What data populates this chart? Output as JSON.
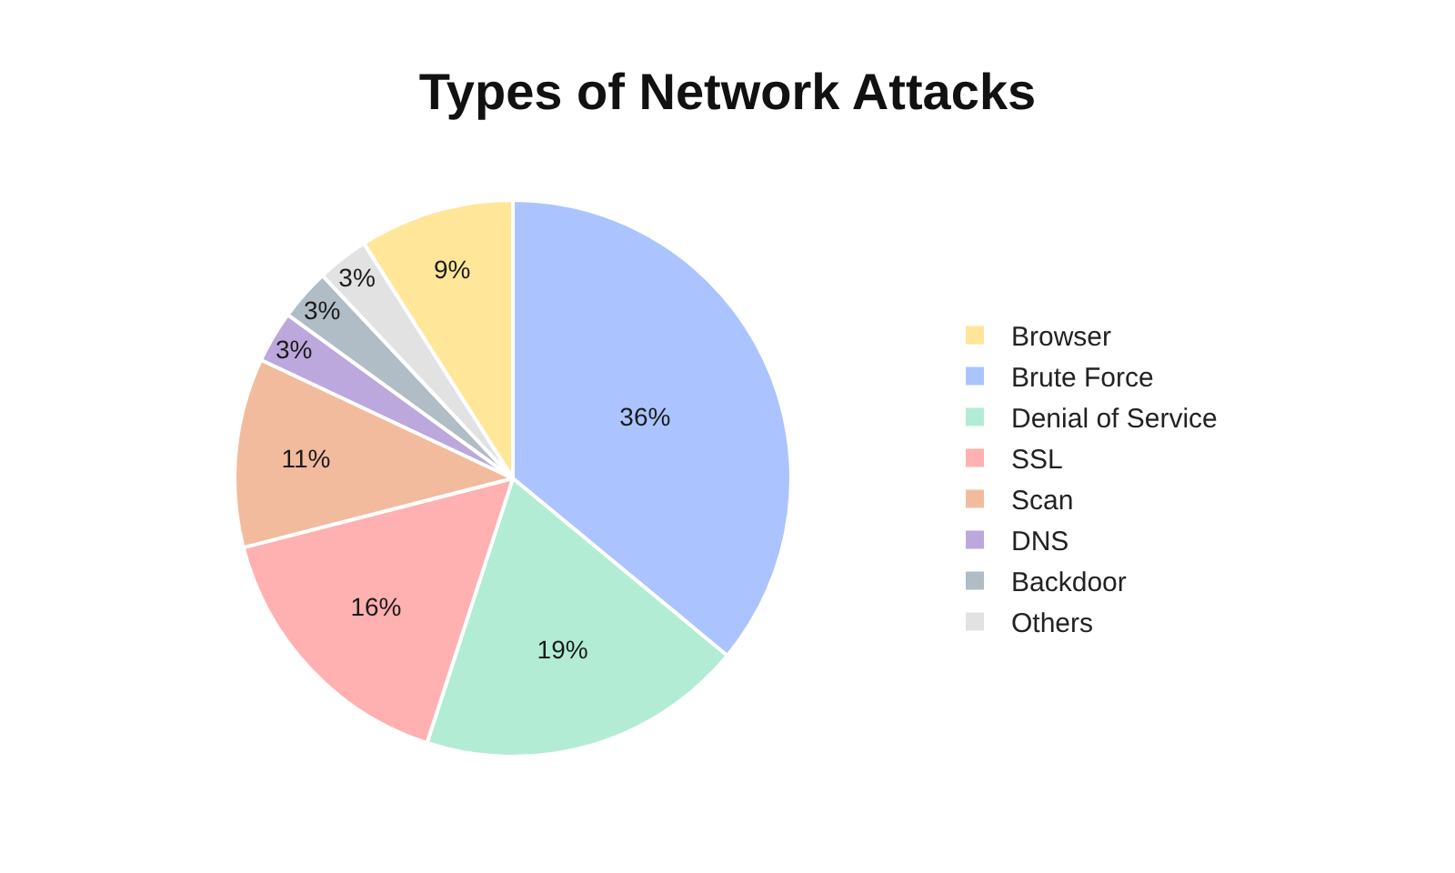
{
  "chart_data": {
    "type": "pie",
    "title": "Types of Network Attacks",
    "categories": [
      "Browser",
      "Brute Force",
      "Denial of Service",
      "SSL",
      "Scan",
      "DNS",
      "Backdoor",
      "Others"
    ],
    "values": [
      9,
      36,
      19,
      16,
      11,
      3,
      3,
      3
    ],
    "value_labels": [
      "9%",
      "36%",
      "19%",
      "16%",
      "11%",
      "3%",
      "3%",
      "3%"
    ],
    "colors": [
      "#ffe699",
      "#abc4ff",
      "#b2ecd5",
      "#ffb0b0",
      "#f2bb9e",
      "#bca8dc",
      "#b0bcc6",
      "#e2e2e2"
    ],
    "legend": "right"
  }
}
